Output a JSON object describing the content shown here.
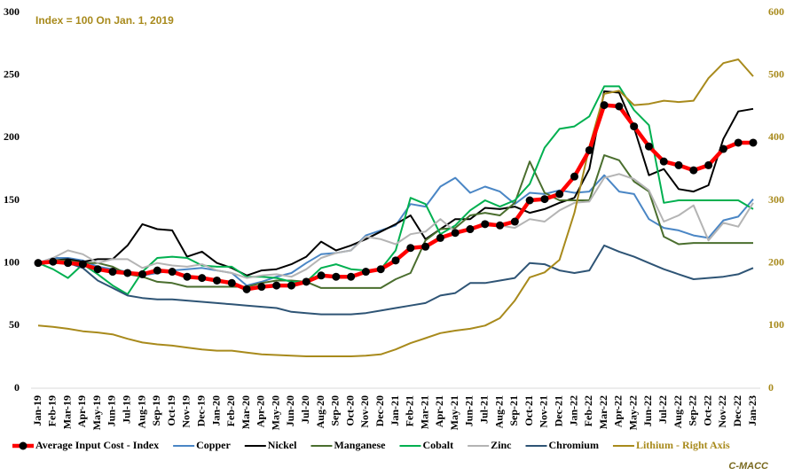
{
  "chart_data": {
    "type": "line",
    "annotation": "Index = 100 On Jan. 1, 2019",
    "source": "C-MACC",
    "categories": [
      "Jan-19",
      "Feb-19",
      "Mar-19",
      "Apr-19",
      "May-19",
      "Jun-19",
      "Jul-19",
      "Aug-19",
      "Sep-19",
      "Oct-19",
      "Nov-19",
      "Dec-19",
      "Jan-20",
      "Feb-20",
      "Mar-20",
      "Apr-20",
      "May-20",
      "Jun-20",
      "Jul-20",
      "Aug-20",
      "Sep-20",
      "Oct-20",
      "Nov-20",
      "Dec-20",
      "Jan-21",
      "Feb-21",
      "Mar-21",
      "Apr-21",
      "May-21",
      "Jun-21",
      "Jul-21",
      "Aug-21",
      "Sep-21",
      "Oct-21",
      "Nov-21",
      "Dec-21",
      "Jan-22",
      "Feb-22",
      "Mar-22",
      "Apr-22",
      "May-22",
      "Jun-22",
      "Jul-22",
      "Aug-22",
      "Sep-22",
      "Oct-22",
      "Nov-22",
      "Dec-22",
      "Jan-23"
    ],
    "ylim": [
      0,
      300
    ],
    "yticks": [
      0,
      50,
      100,
      150,
      200,
      250,
      300
    ],
    "y2lim": [
      0,
      600
    ],
    "y2ticks": [
      0,
      100,
      200,
      300,
      400,
      500,
      600
    ],
    "grid": false,
    "legend": "bottom",
    "series": [
      {
        "name": "Average Input Cost - Index",
        "color": "#ff0000",
        "markers": true,
        "values": [
          100,
          101,
          100,
          99,
          95,
          93,
          92,
          91,
          94,
          93,
          89,
          88,
          86,
          84,
          79,
          81,
          82,
          82,
          85,
          90,
          89,
          89,
          93,
          95,
          102,
          112,
          113,
          120,
          124,
          127,
          131,
          130,
          133,
          150,
          151,
          155,
          169,
          190,
          226,
          225,
          209,
          193,
          181,
          178,
          174,
          178,
          191,
          196,
          196
        ]
      },
      {
        "name": "Copper",
        "color": "#4a86c5",
        "values": [
          100,
          104,
          104,
          102,
          97,
          95,
          93,
          90,
          92,
          94,
          95,
          96,
          94,
          92,
          82,
          85,
          89,
          92,
          100,
          107,
          108,
          110,
          122,
          126,
          130,
          147,
          145,
          161,
          168,
          156,
          161,
          157,
          147,
          156,
          155,
          158,
          156,
          157,
          170,
          157,
          155,
          135,
          128,
          126,
          122,
          120,
          134,
          137,
          151
        ]
      },
      {
        "name": "Nickel",
        "color": "#000000",
        "values": [
          100,
          102,
          103,
          101,
          103,
          103,
          114,
          131,
          127,
          126,
          105,
          109,
          100,
          96,
          90,
          94,
          95,
          99,
          105,
          117,
          110,
          114,
          119,
          125,
          131,
          138,
          119,
          127,
          135,
          135,
          144,
          143,
          145,
          140,
          143,
          148,
          152,
          175,
          237,
          236,
          208,
          170,
          175,
          159,
          157,
          162,
          199,
          221,
          223
        ]
      },
      {
        "name": "Manganese",
        "color": "#4a6e2e",
        "values": [
          100,
          102,
          102,
          100,
          100,
          97,
          91,
          89,
          85,
          84,
          81,
          81,
          81,
          81,
          81,
          84,
          86,
          86,
          85,
          80,
          80,
          80,
          80,
          80,
          87,
          92,
          118,
          127,
          128,
          138,
          140,
          138,
          148,
          181,
          156,
          150,
          150,
          150,
          186,
          182,
          165,
          157,
          121,
          115,
          116,
          116,
          116,
          116,
          116
        ]
      },
      {
        "name": "Cobalt",
        "color": "#00b050",
        "values": [
          100,
          95,
          88,
          99,
          91,
          82,
          75,
          93,
          104,
          105,
          104,
          98,
          97,
          97,
          89,
          89,
          88,
          85,
          85,
          96,
          99,
          95,
          94,
          95,
          110,
          152,
          147,
          123,
          130,
          142,
          150,
          145,
          150,
          163,
          192,
          207,
          209,
          217,
          241,
          241,
          222,
          210,
          148,
          150,
          150,
          150,
          150,
          150,
          143
        ]
      },
      {
        "name": "Zinc",
        "color": "#b4b4b4",
        "values": [
          100,
          104,
          110,
          107,
          100,
          103,
          103,
          96,
          100,
          98,
          97,
          99,
          94,
          92,
          88,
          90,
          91,
          89,
          95,
          104,
          108,
          110,
          121,
          119,
          115,
          123,
          125,
          135,
          125,
          126,
          133,
          130,
          128,
          135,
          133,
          142,
          148,
          149,
          168,
          171,
          167,
          158,
          133,
          138,
          146,
          118,
          132,
          129,
          148
        ]
      },
      {
        "name": "Chromium",
        "color": "#2e5475",
        "values": [
          100,
          102,
          100,
          96,
          86,
          80,
          74,
          72,
          71,
          71,
          70,
          69,
          68,
          67,
          66,
          65,
          64,
          61,
          60,
          59,
          59,
          59,
          60,
          62,
          64,
          66,
          68,
          74,
          76,
          84,
          84,
          86,
          88,
          100,
          99,
          94,
          92,
          94,
          114,
          109,
          105,
          100,
          95,
          91,
          87,
          88,
          89,
          91,
          96
        ]
      },
      {
        "name": "Lithium - Right Axis",
        "color": "#a88a1c",
        "axis": "y2",
        "values": [
          100,
          98,
          95,
          91,
          89,
          86,
          79,
          73,
          70,
          68,
          65,
          62,
          60,
          60,
          57,
          54,
          53,
          52,
          51,
          51,
          51,
          51,
          52,
          54,
          62,
          72,
          80,
          88,
          92,
          95,
          100,
          112,
          140,
          177,
          185,
          205,
          280,
          385,
          470,
          475,
          452,
          454,
          459,
          457,
          459,
          495,
          519,
          525,
          498
        ]
      }
    ]
  }
}
